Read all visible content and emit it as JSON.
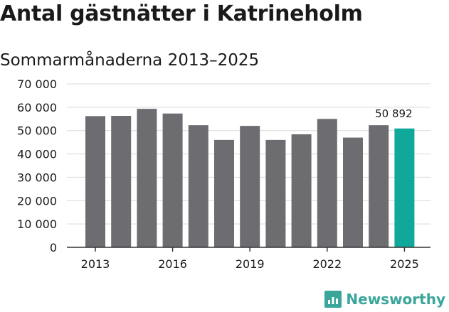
{
  "header": {
    "title": "Antal gästnätter i Katrineholm",
    "subtitle": "Sommarmånaderna 2013–2025"
  },
  "brand": {
    "name": "Newsworthy"
  },
  "colors": {
    "bar": "#6d6c71",
    "highlight": "#0fa89b",
    "grid": "#d9d9d9",
    "axis": "#333333",
    "logo": "#3aa59a"
  },
  "chart_data": {
    "type": "bar",
    "title": "Antal gästnätter i Katrineholm",
    "subtitle": "Sommarmånaderna 2013–2025",
    "categories": [
      2013,
      2014,
      2015,
      2016,
      2017,
      2018,
      2019,
      2020,
      2021,
      2022,
      2023,
      2024,
      2025
    ],
    "values": [
      56200,
      56300,
      59300,
      57300,
      52300,
      46000,
      52000,
      46000,
      48400,
      55000,
      47000,
      52300,
      50892
    ],
    "x_tick_labels": [
      "2013",
      "2016",
      "2019",
      "2022",
      "2025"
    ],
    "y_tick_labels": [
      "0",
      "10 000",
      "20 000",
      "30 000",
      "40 000",
      "50 000",
      "60 000",
      "70 000"
    ],
    "ylim": [
      0,
      70000
    ],
    "grid": true,
    "highlight_index": 12,
    "annotation": {
      "index": 12,
      "text": "50 892"
    }
  }
}
